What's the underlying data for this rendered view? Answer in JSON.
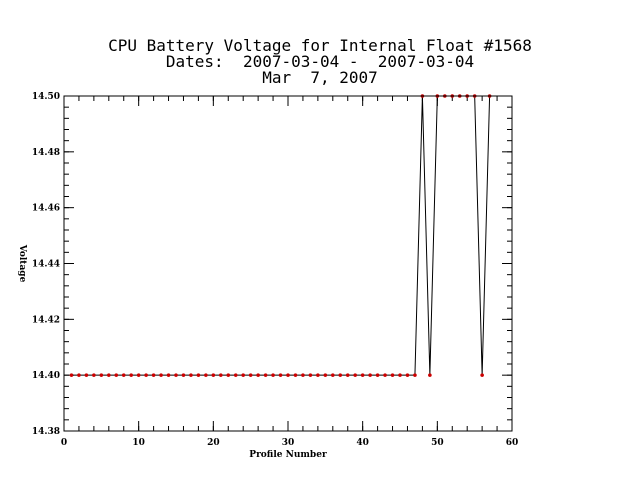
{
  "chart_data": {
    "type": "line",
    "title_lines": [
      "CPU Battery Voltage for Internal Float #1568",
      "Dates:  2007-03-04 -  2007-03-04",
      "Mar  7, 2007"
    ],
    "xlabel": "Profile Number",
    "ylabel": "Voltage",
    "xlim": [
      0,
      60
    ],
    "ylim": [
      14.38,
      14.5
    ],
    "x_ticks": [
      0,
      10,
      20,
      30,
      40,
      50,
      60
    ],
    "y_ticks": [
      14.38,
      14.4,
      14.42,
      14.44,
      14.46,
      14.48,
      14.5
    ],
    "x_tick_labels": [
      "0",
      "10",
      "20",
      "30",
      "40",
      "50",
      "60"
    ],
    "y_tick_labels": [
      "14.38",
      "14.40",
      "14.42",
      "14.44",
      "14.46",
      "14.48",
      "14.50"
    ],
    "line_color": "#000000",
    "marker_color": "#cc0000",
    "series": [
      {
        "x": [
          1,
          2,
          3,
          4,
          5,
          6,
          7,
          8,
          9,
          10,
          11,
          12,
          13,
          14,
          15,
          16,
          17,
          18,
          19,
          20,
          21,
          22,
          23,
          24,
          25,
          26,
          27,
          28,
          29,
          30,
          31,
          32,
          33,
          34,
          35,
          36,
          37,
          38,
          39,
          40,
          41,
          42,
          43,
          44,
          45,
          46,
          47,
          48,
          49,
          50,
          51,
          52,
          53,
          54,
          55,
          56,
          57
        ],
        "y": [
          14.4,
          14.4,
          14.4,
          14.4,
          14.4,
          14.4,
          14.4,
          14.4,
          14.4,
          14.4,
          14.4,
          14.4,
          14.4,
          14.4,
          14.4,
          14.4,
          14.4,
          14.4,
          14.4,
          14.4,
          14.4,
          14.4,
          14.4,
          14.4,
          14.4,
          14.4,
          14.4,
          14.4,
          14.4,
          14.4,
          14.4,
          14.4,
          14.4,
          14.4,
          14.4,
          14.4,
          14.4,
          14.4,
          14.4,
          14.4,
          14.4,
          14.4,
          14.4,
          14.4,
          14.4,
          14.4,
          14.4,
          14.5,
          14.4,
          14.5,
          14.5,
          14.5,
          14.5,
          14.5,
          14.5,
          14.4,
          14.5
        ]
      }
    ]
  }
}
